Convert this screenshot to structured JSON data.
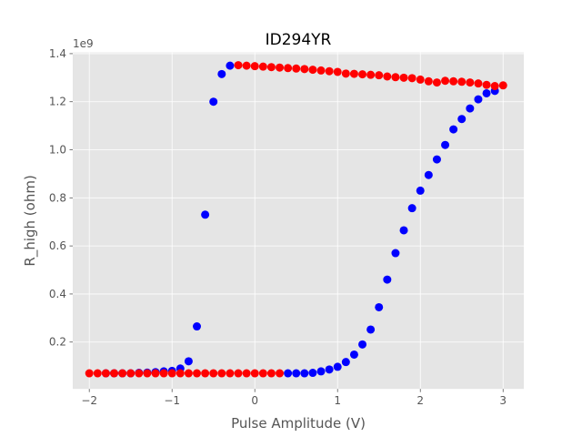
{
  "chart_data": {
    "type": "scatter",
    "title": "ID294YR",
    "xlabel": "Pulse Amplitude (V)",
    "ylabel": "R_high (ohm)",
    "y_offset_label": "1e9",
    "xlim": [
      -2.2,
      3.25
    ],
    "ylim": [
      0.005,
      1.405
    ],
    "x_ticks": [
      -2,
      -1,
      0,
      1,
      2,
      3
    ],
    "x_tick_labels": [
      "−2",
      "−1",
      "0",
      "1",
      "2",
      "3"
    ],
    "y_ticks": [
      0.2,
      0.4,
      0.6,
      0.8,
      1.0,
      1.2,
      1.4
    ],
    "y_tick_labels": [
      "0.2",
      "0.4",
      "0.6",
      "0.8",
      "1.0",
      "1.2",
      "1.4"
    ],
    "grid": true,
    "background": "#e5e5e5",
    "series": [
      {
        "color": "#0000ff",
        "x": [
          -1.8,
          -1.7,
          -1.6,
          -1.5,
          -1.4,
          -1.3,
          -1.2,
          -1.1,
          -1.0,
          -0.9,
          -0.8,
          -0.7,
          -0.6,
          -0.5,
          -0.4,
          -0.3,
          0.4,
          0.5,
          0.6,
          0.7,
          0.8,
          0.9,
          1.0,
          1.1,
          1.2,
          1.3,
          1.4,
          1.5,
          1.6,
          1.7,
          1.8,
          1.9,
          2.0,
          2.1,
          2.2,
          2.3,
          2.4,
          2.5,
          2.6,
          2.7,
          2.8,
          2.9
        ],
        "y": [
          0.07,
          0.07,
          0.07,
          0.07,
          0.072,
          0.073,
          0.075,
          0.078,
          0.08,
          0.09,
          0.12,
          0.265,
          0.73,
          1.2,
          1.315,
          1.35,
          0.07,
          0.07,
          0.07,
          0.072,
          0.078,
          0.086,
          0.097,
          0.117,
          0.148,
          0.19,
          0.252,
          0.345,
          0.46,
          0.57,
          0.665,
          0.757,
          0.83,
          0.895,
          0.96,
          1.02,
          1.085,
          1.128,
          1.172,
          1.21,
          1.235,
          1.245
        ]
      },
      {
        "color": "#ff0000",
        "x": [
          -2.0,
          -1.9,
          -1.8,
          -1.7,
          -1.6,
          -1.5,
          -1.4,
          -1.3,
          -1.2,
          -1.1,
          -1.0,
          -0.9,
          -0.8,
          -0.7,
          -0.6,
          -0.5,
          -0.4,
          -0.3,
          -0.2,
          -0.1,
          0.0,
          0.1,
          0.2,
          0.3,
          -0.2,
          -0.1,
          0.0,
          0.1,
          0.2,
          0.3,
          0.4,
          0.5,
          0.6,
          0.7,
          0.8,
          0.9,
          1.0,
          1.1,
          1.2,
          1.3,
          1.4,
          1.5,
          1.6,
          1.7,
          1.8,
          1.9,
          2.0,
          2.1,
          2.2,
          2.3,
          2.4,
          2.5,
          2.6,
          2.7,
          2.8,
          2.9,
          3.0
        ],
        "y": [
          0.07,
          0.07,
          0.07,
          0.07,
          0.07,
          0.07,
          0.07,
          0.07,
          0.07,
          0.07,
          0.07,
          0.07,
          0.07,
          0.07,
          0.07,
          0.07,
          0.07,
          0.07,
          0.07,
          0.07,
          0.07,
          0.07,
          0.07,
          0.07,
          1.352,
          1.35,
          1.348,
          1.346,
          1.344,
          1.342,
          1.34,
          1.338,
          1.336,
          1.333,
          1.33,
          1.327,
          1.324,
          1.317,
          1.316,
          1.314,
          1.312,
          1.31,
          1.305,
          1.302,
          1.3,
          1.298,
          1.292,
          1.285,
          1.28,
          1.287,
          1.285,
          1.283,
          1.28,
          1.276,
          1.27,
          1.265,
          1.268
        ]
      }
    ]
  }
}
